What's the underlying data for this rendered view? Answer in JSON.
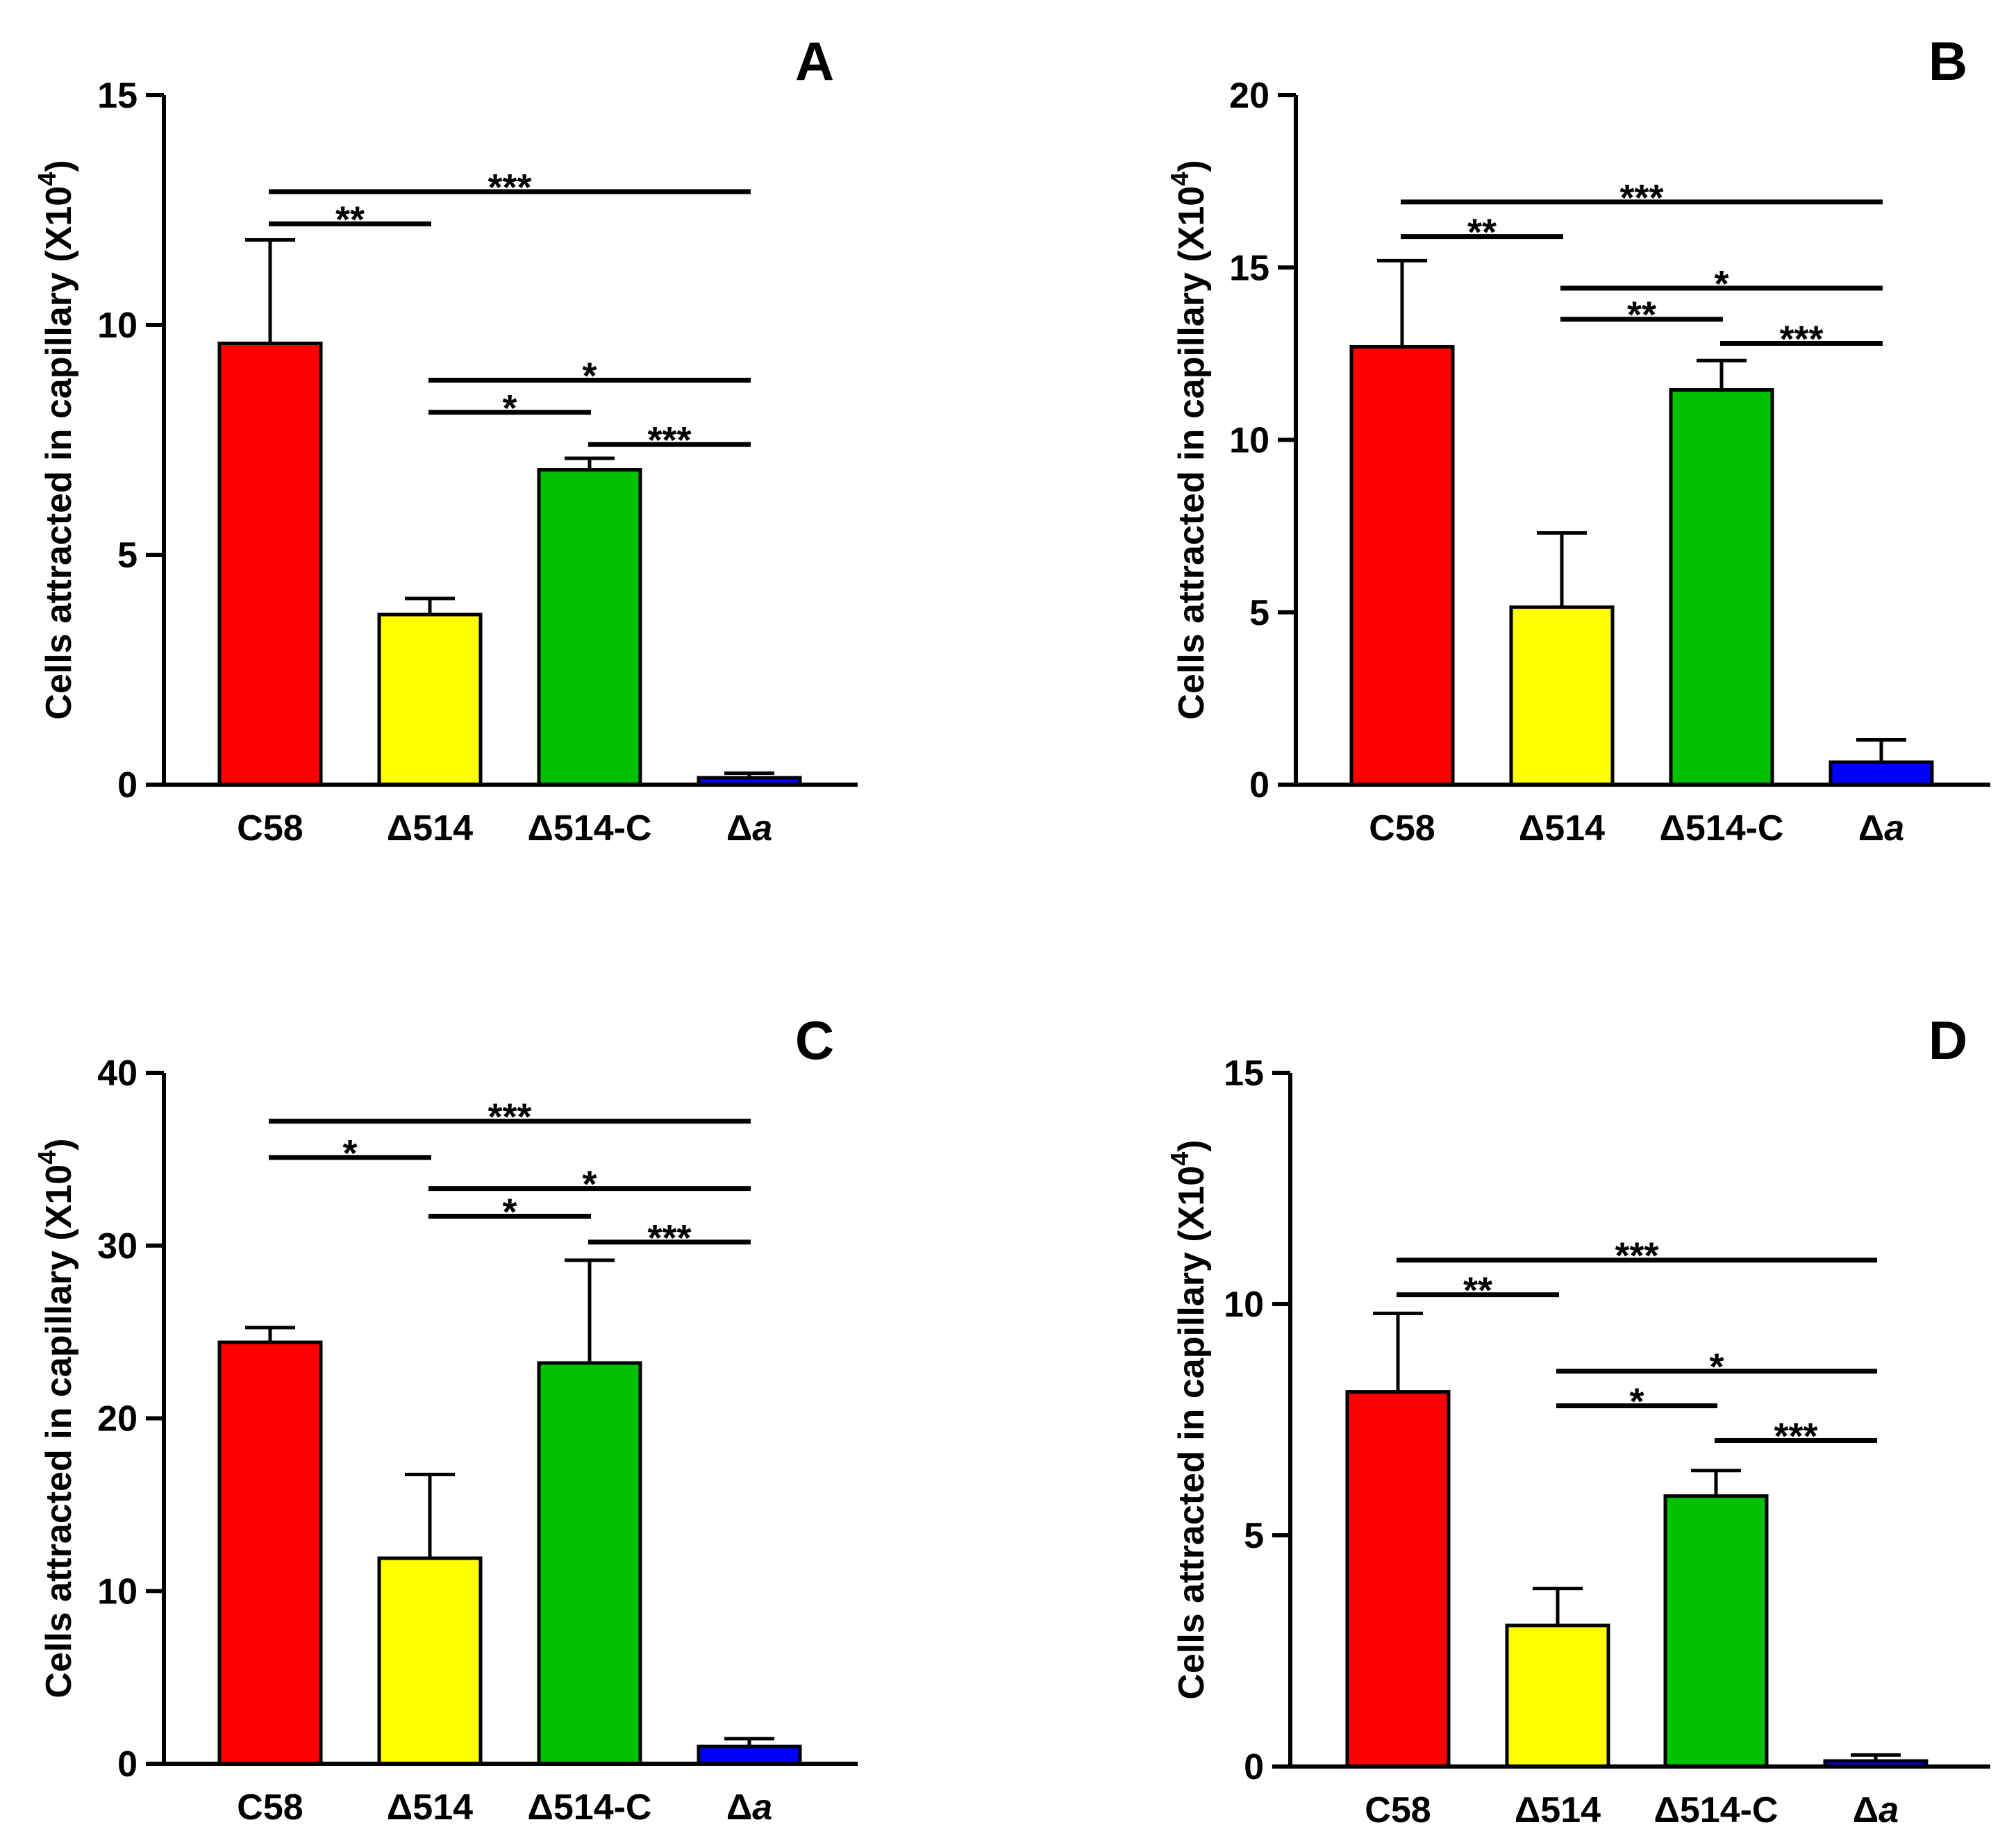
{
  "chart_data": [
    {
      "panel_label": "A",
      "type": "bar",
      "categories": [
        "C58",
        "Δ514",
        "Δ514-C",
        "Δa"
      ],
      "values": [
        9.6,
        3.7,
        6.85,
        0.15
      ],
      "errors": [
        2.25,
        0.35,
        0.25,
        0.1
      ],
      "colors": [
        "#ff0000",
        "#ffff00",
        "#00c000",
        "#0000ff"
      ],
      "ylabel": "Cells attracted in capillary (X10",
      "ylabel_sup": "4",
      "ylabel_close": ")",
      "ylim": [
        0,
        15
      ],
      "yticks": [
        0,
        5,
        10,
        15
      ],
      "significance": [
        {
          "from": 0,
          "to": 3,
          "y": 12.9,
          "label": "***"
        },
        {
          "from": 0,
          "to": 1,
          "y": 12.2,
          "label": "**"
        },
        {
          "from": 1,
          "to": 3,
          "y": 8.8,
          "label": "*"
        },
        {
          "from": 1,
          "to": 2,
          "y": 8.1,
          "label": "*"
        },
        {
          "from": 2,
          "to": 3,
          "y": 7.4,
          "label": "***"
        }
      ]
    },
    {
      "panel_label": "B",
      "type": "bar",
      "categories": [
        "C58",
        "Δ514",
        "Δ514-C",
        "Δa"
      ],
      "values": [
        12.7,
        5.15,
        11.45,
        0.65
      ],
      "errors": [
        2.5,
        2.15,
        0.85,
        0.65
      ],
      "colors": [
        "#ff0000",
        "#ffff00",
        "#00c000",
        "#0000ff"
      ],
      "ylabel": "Cells attracted in capillary (X10",
      "ylabel_sup": "4",
      "ylabel_close": ")",
      "ylim": [
        0,
        20
      ],
      "yticks": [
        0,
        5,
        10,
        15,
        20
      ],
      "significance": [
        {
          "from": 0,
          "to": 3,
          "y": 16.9,
          "label": "***"
        },
        {
          "from": 0,
          "to": 1,
          "y": 15.9,
          "label": "**"
        },
        {
          "from": 1,
          "to": 3,
          "y": 14.4,
          "label": "*"
        },
        {
          "from": 1,
          "to": 2,
          "y": 13.5,
          "label": "**"
        },
        {
          "from": 2,
          "to": 3,
          "y": 12.8,
          "label": "***"
        }
      ]
    },
    {
      "panel_label": "C",
      "type": "bar",
      "categories": [
        "C58",
        "Δ514",
        "Δ514-C",
        "Δa"
      ],
      "values": [
        24.4,
        11.9,
        23.2,
        1.0
      ],
      "errors": [
        0.85,
        4.85,
        5.95,
        0.45
      ],
      "colors": [
        "#ff0000",
        "#ffff00",
        "#00c000",
        "#0000ff"
      ],
      "ylabel": "Cells attracted in capillary (X10",
      "ylabel_sup": "4",
      "ylabel_close": ")",
      "ylim": [
        0,
        40
      ],
      "yticks": [
        0,
        10,
        20,
        30,
        40
      ],
      "significance": [
        {
          "from": 0,
          "to": 3,
          "y": 37.2,
          "label": "***"
        },
        {
          "from": 0,
          "to": 1,
          "y": 35.1,
          "label": "*"
        },
        {
          "from": 1,
          "to": 3,
          "y": 33.3,
          "label": "*"
        },
        {
          "from": 1,
          "to": 2,
          "y": 31.7,
          "label": "*"
        },
        {
          "from": 2,
          "to": 3,
          "y": 30.2,
          "label": "***"
        }
      ]
    },
    {
      "panel_label": "D",
      "type": "bar",
      "categories": [
        "C58",
        "Δ514",
        "Δ514-C",
        "Δa"
      ],
      "values": [
        8.1,
        3.05,
        5.85,
        0.12
      ],
      "errors": [
        1.7,
        0.8,
        0.55,
        0.13
      ],
      "colors": [
        "#ff0000",
        "#ffff00",
        "#00c000",
        "#0000ff"
      ],
      "ylabel": "Cells attracted in capillary (X10",
      "ylabel_sup": "4",
      "ylabel_close": ")",
      "ylim": [
        0,
        15
      ],
      "yticks": [
        0,
        5,
        10,
        15
      ],
      "significance": [
        {
          "from": 0,
          "to": 3,
          "y": 10.95,
          "label": "***"
        },
        {
          "from": 0,
          "to": 1,
          "y": 10.2,
          "label": "**"
        },
        {
          "from": 1,
          "to": 3,
          "y": 8.55,
          "label": "*"
        },
        {
          "from": 1,
          "to": 2,
          "y": 7.8,
          "label": "*"
        },
        {
          "from": 2,
          "to": 3,
          "y": 7.05,
          "label": "***"
        }
      ]
    }
  ]
}
